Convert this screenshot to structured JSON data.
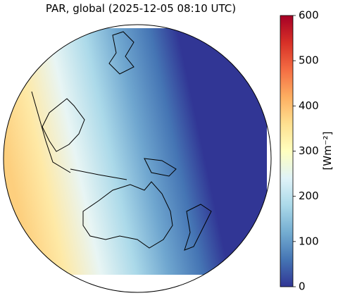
{
  "title": "PAR, global (2025-12-05 08:10 UTC)",
  "colorbar": {
    "label": "[Wm⁻²]",
    "lim": [
      0,
      600
    ],
    "ticks": [
      0,
      100,
      200,
      300,
      400,
      500,
      600
    ],
    "colors": [
      "#313695",
      "#4575b4",
      "#74add1",
      "#abd9e9",
      "#e0f3f8",
      "#ffffbf",
      "#fee090",
      "#fdae61",
      "#f46d43",
      "#d73027",
      "#a50026"
    ]
  }
}
